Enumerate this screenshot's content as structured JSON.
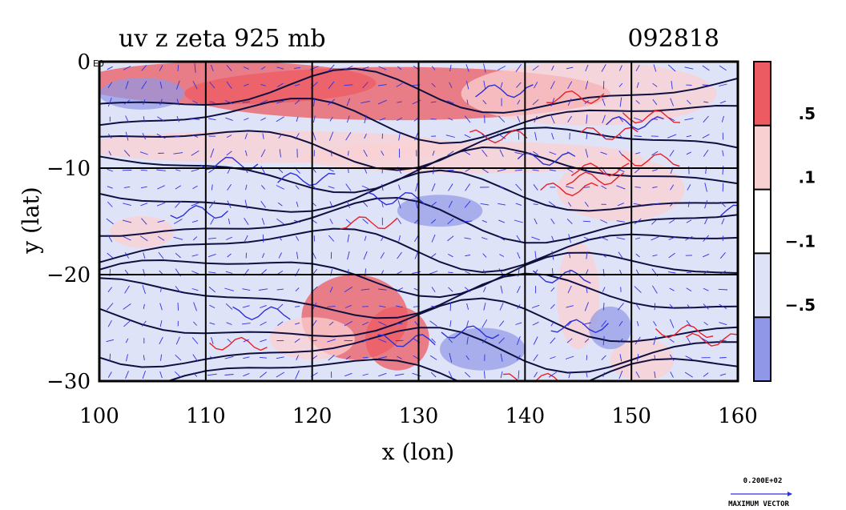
{
  "chart_data": {
    "type": "heatmap",
    "title_left": "uv z zeta 925 mb",
    "title_right": "092818",
    "xlabel": "x (lon)",
    "ylabel": "y (lat)",
    "xlim": [
      100,
      160
    ],
    "ylim": [
      -30,
      0
    ],
    "x_ticks": [
      100,
      110,
      120,
      130,
      140,
      150,
      160
    ],
    "y_ticks": [
      0,
      -10,
      -20,
      -30
    ],
    "x_tick_labels": [
      "100",
      "110",
      "120",
      "130",
      "140",
      "150",
      "160"
    ],
    "y_tick_labels": [
      "0",
      "−10",
      "−20",
      "−30"
    ],
    "y_top_suffix": "E0",
    "grid": true,
    "colorbar": {
      "levels": [
        -0.5,
        -0.1,
        0.1,
        0.5
      ],
      "level_labels": [
        "−.5",
        "−.1",
        ".1",
        ".5"
      ],
      "colors": [
        "#ec5b62",
        "#f9d0d2",
        "#ffffff",
        "#dfe3f8",
        "#8f97e6"
      ]
    },
    "contour_color_positive": "#e8202a",
    "contour_color_negative": "#2c30d8",
    "vector_color": "#2c30e6",
    "vector_legend": {
      "value": "0.200E+02",
      "label": "MAXIMUM VECTOR"
    }
  }
}
